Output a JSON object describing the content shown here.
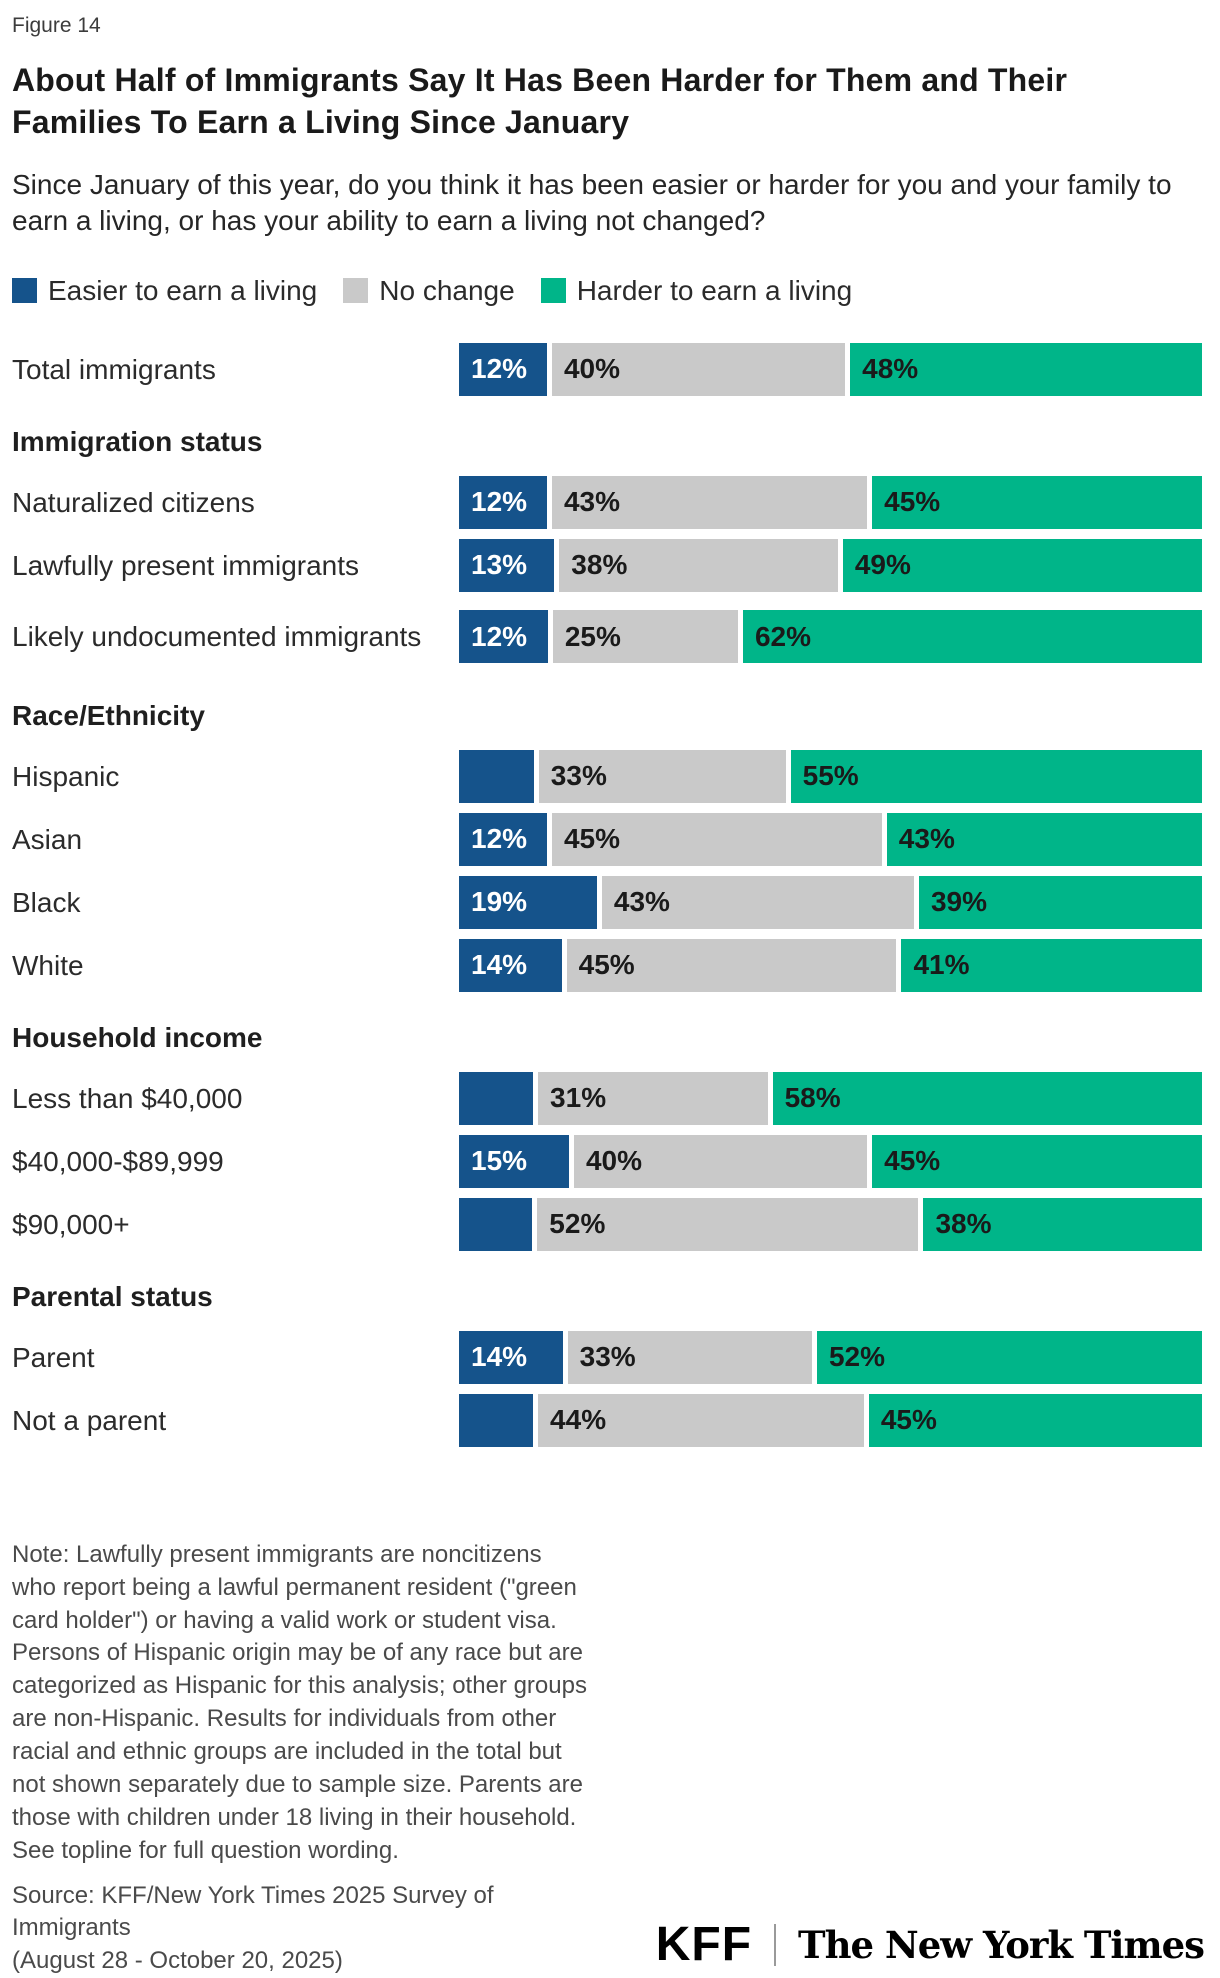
{
  "figure_label": "Figure 14",
  "title": "About Half of Immigrants Say It Has Been Harder for Them and Their Families To Earn a Living Since January",
  "subtitle": "Since January of this year, do you think it has been easier or harder for you and your family to earn a living, or has your ability to earn a living not changed?",
  "colors": {
    "easier": "#15538b",
    "no_change": "#c9c9c9",
    "harder": "#00b589"
  },
  "legend": [
    {
      "key": "easier",
      "label": "Easier to earn a living"
    },
    {
      "key": "no_change",
      "label": "No change"
    },
    {
      "key": "harder",
      "label": "Harder to earn a living"
    }
  ],
  "chart_data": {
    "type": "bar",
    "orientation": "horizontal",
    "stacked": true,
    "unit": "%",
    "series_names": [
      "Easier to earn a living",
      "No change",
      "Harder to earn a living"
    ],
    "rows": [
      {
        "type": "row",
        "label": "Total immigrants",
        "values": [
          12,
          40,
          48
        ],
        "labels": [
          "12%",
          "40%",
          "48%"
        ]
      },
      {
        "type": "section",
        "label": "Immigration status"
      },
      {
        "type": "row",
        "label": "Naturalized citizens",
        "values": [
          12,
          43,
          45
        ],
        "labels": [
          "12%",
          "43%",
          "45%"
        ]
      },
      {
        "type": "row",
        "label": "Lawfully present immigrants",
        "values": [
          13,
          38,
          49
        ],
        "labels": [
          "13%",
          "38%",
          "49%"
        ]
      },
      {
        "type": "row",
        "label": "Likely undocumented immigrants",
        "values": [
          12,
          25,
          62
        ],
        "labels": [
          "12%",
          "25%",
          "62%"
        ],
        "tall": true
      },
      {
        "type": "section",
        "label": "Race/Ethnicity"
      },
      {
        "type": "row",
        "label": "Hispanic",
        "values": [
          10,
          33,
          55
        ],
        "labels": [
          "",
          "33%",
          "55%"
        ]
      },
      {
        "type": "row",
        "label": "Asian",
        "values": [
          12,
          45,
          43
        ],
        "labels": [
          "12%",
          "45%",
          "43%"
        ]
      },
      {
        "type": "row",
        "label": "Black",
        "values": [
          19,
          43,
          39
        ],
        "labels": [
          "19%",
          "43%",
          "39%"
        ]
      },
      {
        "type": "row",
        "label": "White",
        "values": [
          14,
          45,
          41
        ],
        "labels": [
          "14%",
          "45%",
          "41%"
        ]
      },
      {
        "type": "section",
        "label": "Household income"
      },
      {
        "type": "row",
        "label": "Less than $40,000",
        "values": [
          10,
          31,
          58
        ],
        "labels": [
          "",
          "31%",
          "58%"
        ]
      },
      {
        "type": "row",
        "label": "$40,000-$89,999",
        "values": [
          15,
          40,
          45
        ],
        "labels": [
          "15%",
          "40%",
          "45%"
        ]
      },
      {
        "type": "row",
        "label": "$90,000+",
        "values": [
          10,
          52,
          38
        ],
        "labels": [
          "",
          "52%",
          "38%"
        ]
      },
      {
        "type": "section",
        "label": "Parental status"
      },
      {
        "type": "row",
        "label": "Parent",
        "values": [
          14,
          33,
          52
        ],
        "labels": [
          "14%",
          "33%",
          "52%"
        ]
      },
      {
        "type": "row",
        "label": "Not a parent",
        "values": [
          10,
          44,
          45
        ],
        "labels": [
          "",
          "44%",
          "45%"
        ]
      }
    ]
  },
  "note": "Note: Lawfully present immigrants are noncitizens who report being a lawful permanent resident (\"green card holder\") or having a valid work or student visa. Persons of Hispanic origin may be of any race but are categorized as Hispanic for this analysis; other groups are non-Hispanic. Results for individuals from other racial and ethnic groups are included in the total but not shown separately due to sample size. Parents are those with children under 18 living in their household. See topline for full question wording.",
  "source_line1": "Source: KFF/New York Times 2025 Survey of Immigrants",
  "source_line2": "(August 28 - October 20, 2025)",
  "logos": {
    "kff": "KFF",
    "nyt": "The New York Times"
  }
}
